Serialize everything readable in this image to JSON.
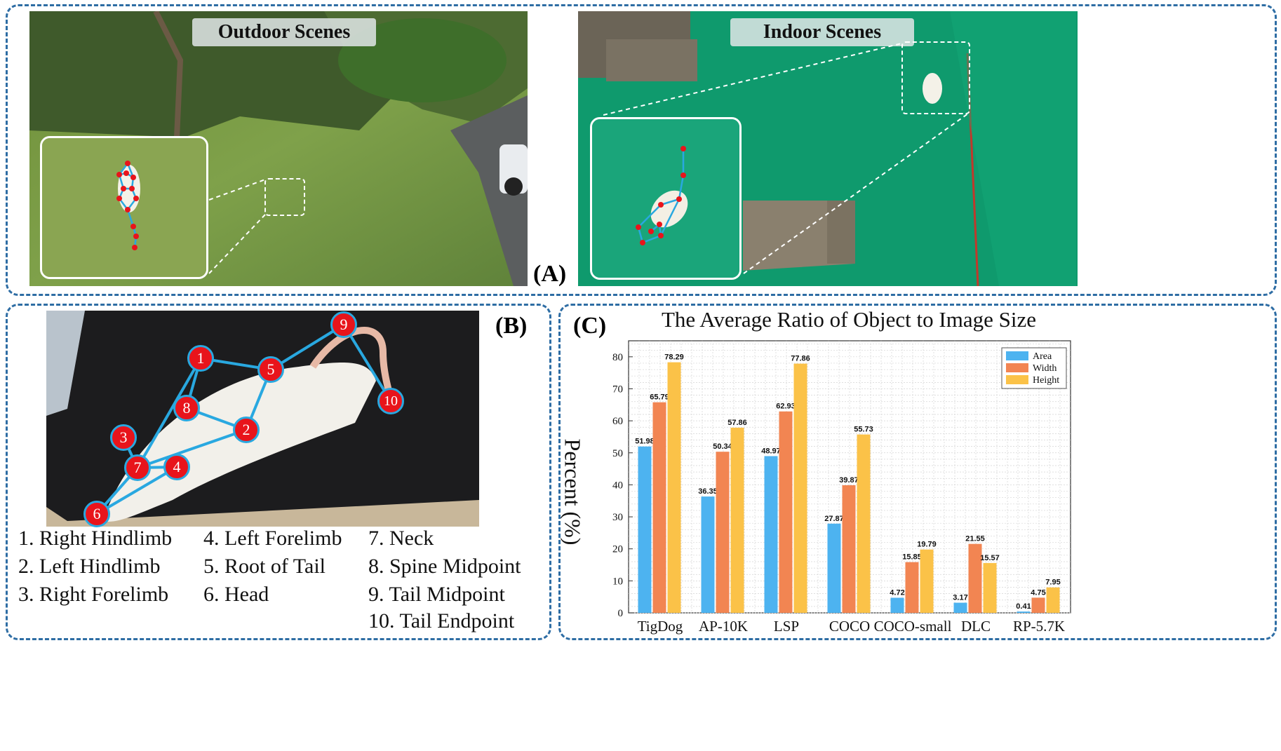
{
  "panel_a": {
    "label": "(A)",
    "outdoor_title": "Outdoor Scenes",
    "indoor_title": "Indoor Scenes"
  },
  "panel_b": {
    "label": "(B)",
    "keypoint_numbers": [
      "1",
      "2",
      "3",
      "4",
      "5",
      "6",
      "7",
      "8",
      "9",
      "10"
    ],
    "legend": [
      "1. Right Hindlimb",
      "2. Left Hindlimb",
      "3. Right Forelimb",
      "4. Left Forelimb",
      "5. Root of Tail",
      "6. Head",
      "7. Neck",
      "8. Spine Midpoint",
      "9. Tail Midpoint",
      "10. Tail Endpoint"
    ]
  },
  "panel_c": {
    "label": "(C)"
  },
  "colors": {
    "border": "#2e6da4",
    "keypoint": "#e8141b",
    "skeleton": "#29a8e0",
    "area": "#4db3f0",
    "width": "#f28552",
    "height": "#fbc248"
  },
  "chart_data": {
    "type": "bar",
    "title": "The Average Ratio of Object to Image Size",
    "xlabel": "",
    "ylabel": "Percent (%)",
    "ylim": [
      0,
      85
    ],
    "yticks": [
      0,
      10,
      20,
      30,
      40,
      50,
      60,
      70,
      80
    ],
    "grid": true,
    "legend_position": "top-right",
    "categories": [
      "TigDog",
      "AP-10K",
      "LSP",
      "COCO",
      "COCO-small",
      "DLC",
      "RP-5.7K"
    ],
    "series": [
      {
        "name": "Area",
        "values": [
          51.98,
          36.35,
          48.97,
          27.87,
          4.72,
          3.17,
          0.41
        ]
      },
      {
        "name": "Width",
        "values": [
          65.79,
          50.34,
          62.93,
          39.87,
          15.85,
          21.55,
          4.75
        ]
      },
      {
        "name": "Height",
        "values": [
          78.29,
          57.86,
          77.86,
          55.73,
          19.79,
          15.57,
          7.95
        ]
      }
    ]
  }
}
